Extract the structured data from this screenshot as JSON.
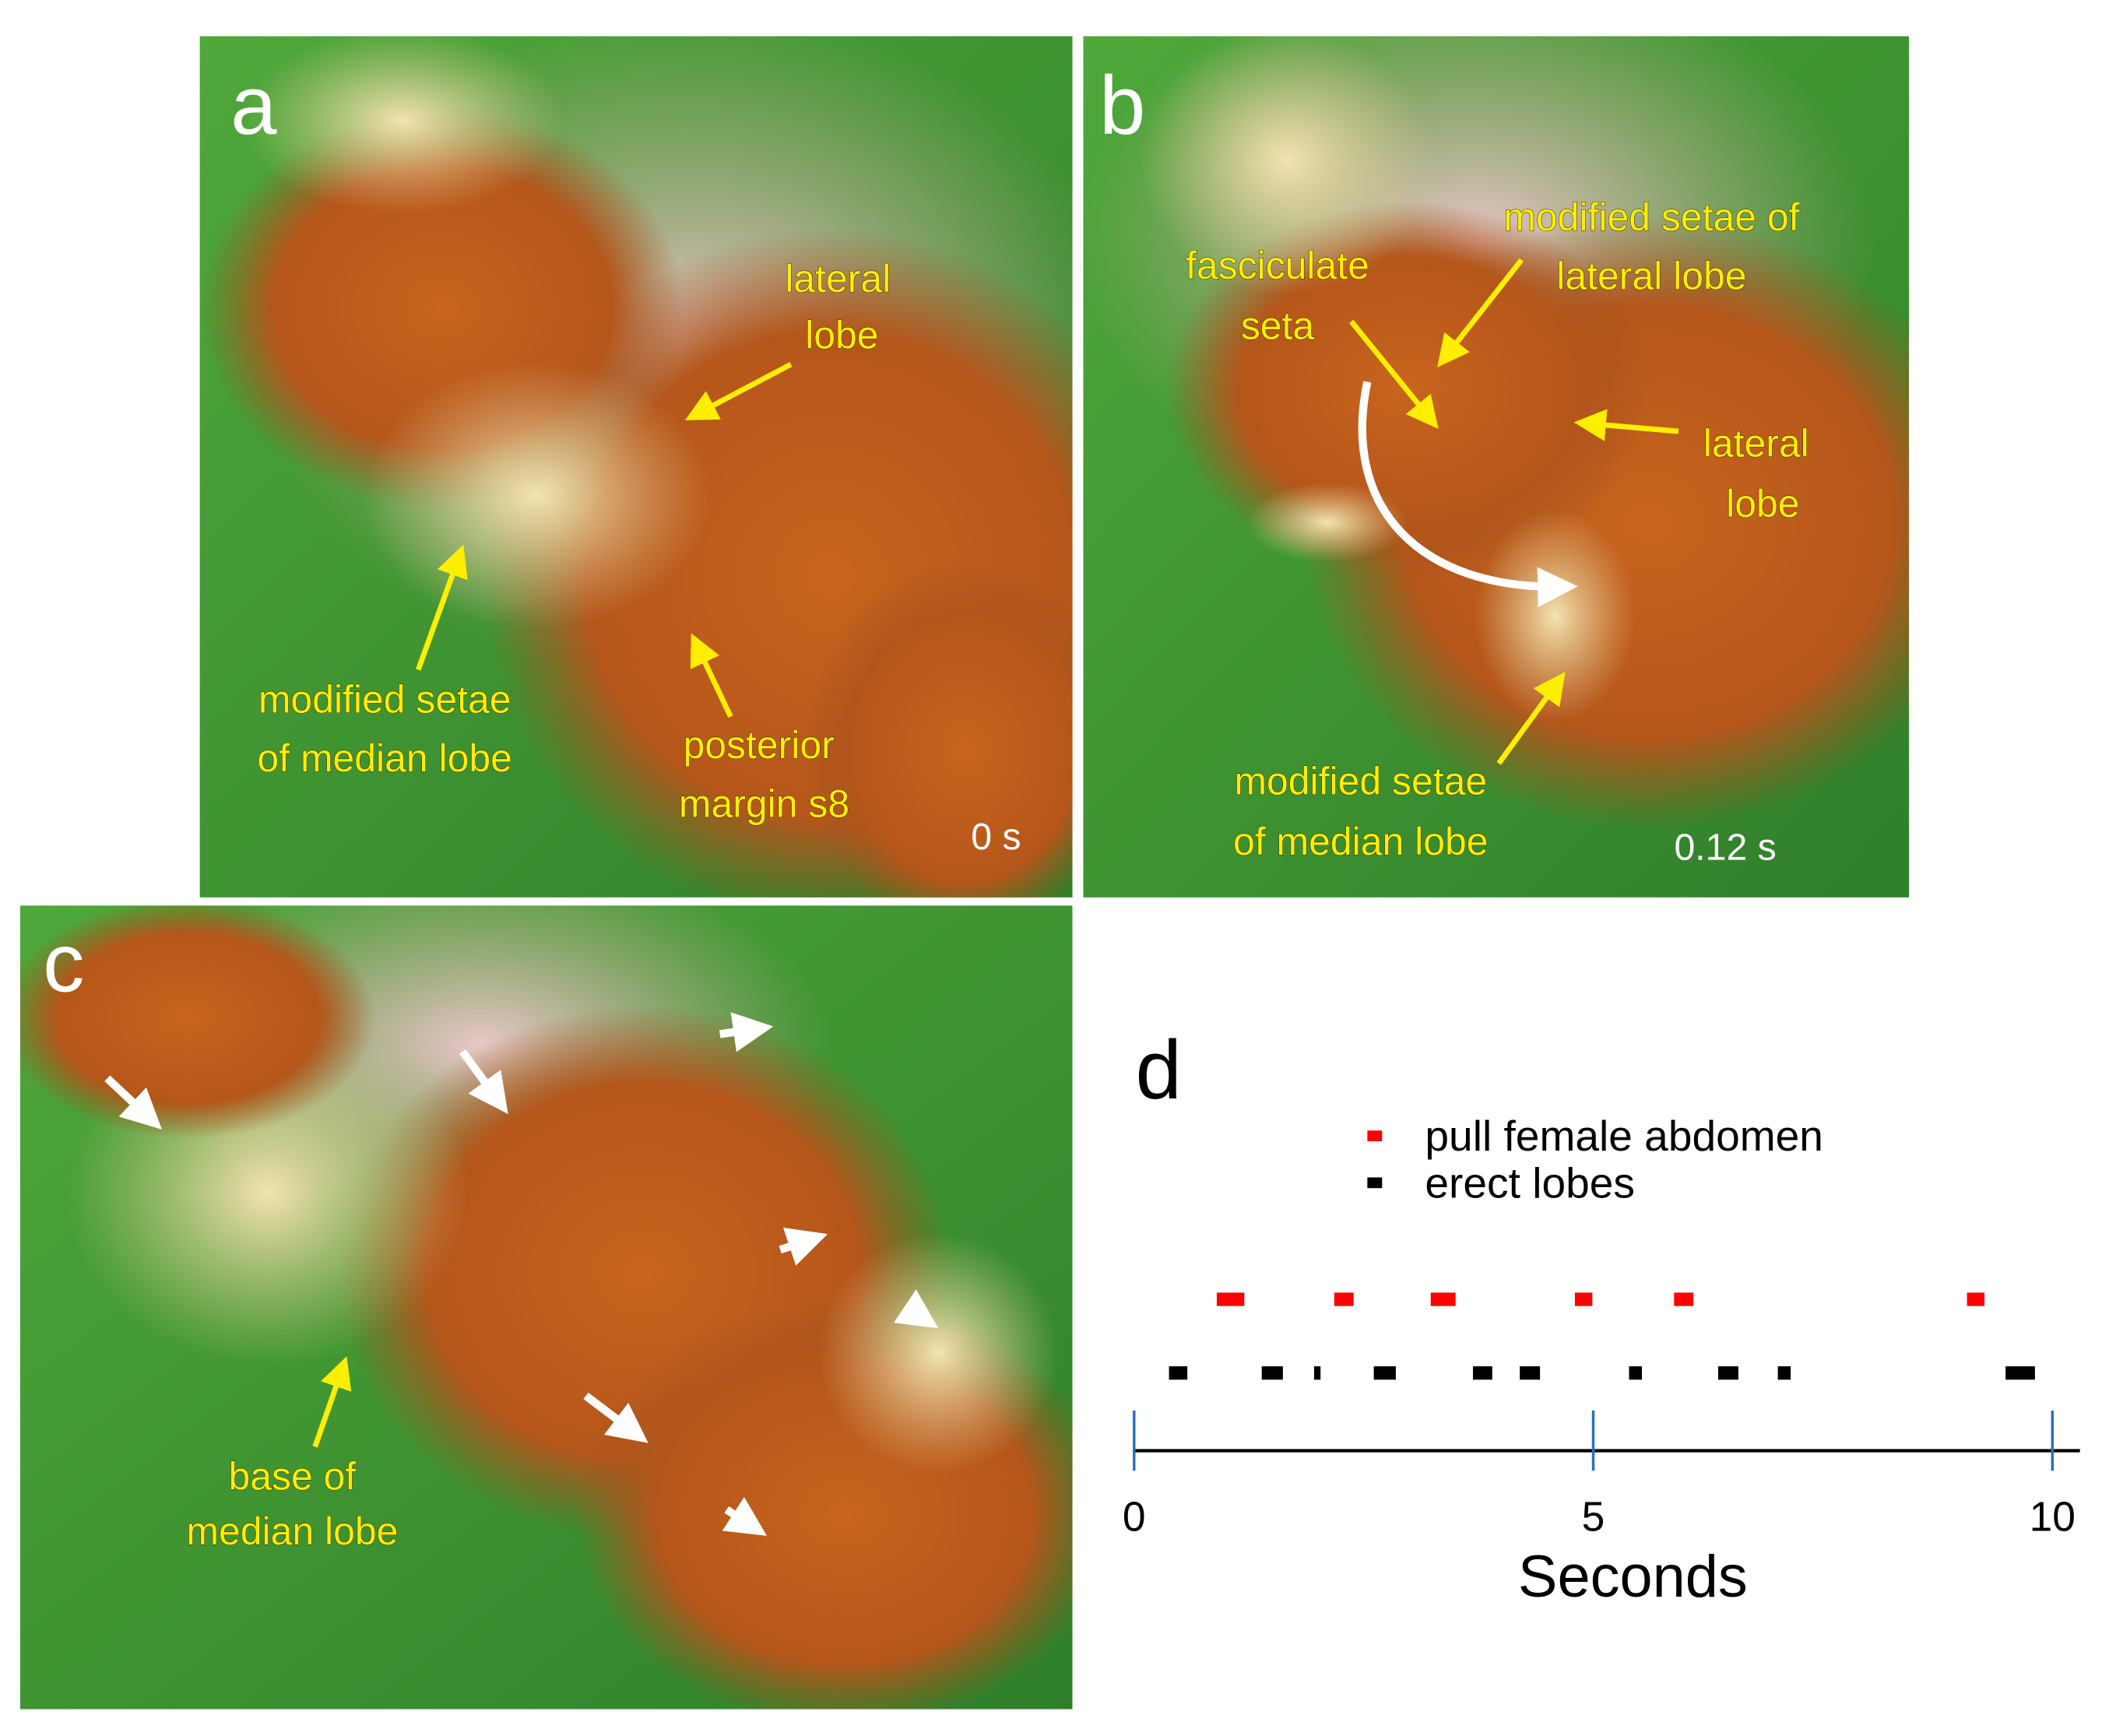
{
  "panels": [
    {
      "label": "a",
      "time": "0 s",
      "annotations": [
        [
          "lateral",
          "lobe"
        ],
        [
          "modified setae",
          "of median lobe"
        ],
        [
          "posterior",
          "margin s8"
        ]
      ]
    },
    {
      "label": "b",
      "time": "0.12 s",
      "annotations": [
        [
          "modified setae of",
          "lateral lobe"
        ],
        [
          "fasciculate",
          "seta"
        ],
        [
          "lateral",
          "lobe"
        ],
        [
          "modified setae",
          "of median lobe"
        ]
      ]
    },
    {
      "label": "c",
      "annotations": [
        [
          "base of",
          "median lobe"
        ]
      ]
    }
  ],
  "chart_data": {
    "type": "timeline",
    "label": "d",
    "x_label": "Seconds",
    "xlim": [
      0,
      10.3
    ],
    "xticks": [
      0,
      5,
      10
    ],
    "series": [
      {
        "name": "pull female abdomen",
        "color": "#ff0000",
        "starts": [
          0.9,
          2.18,
          3.23,
          4.8,
          5.88,
          9.07
        ],
        "ends": [
          1.2,
          2.39,
          3.5,
          4.99,
          6.09,
          9.26
        ]
      },
      {
        "name": "erect lobes",
        "color": "#000000",
        "starts": [
          0.38,
          1.39,
          1.96,
          2.61,
          3.69,
          4.2,
          5.39,
          6.36,
          7.01,
          9.49
        ],
        "ends": [
          0.58,
          1.62,
          2.03,
          2.85,
          3.9,
          4.42,
          5.53,
          6.58,
          7.15,
          9.81
        ]
      }
    ]
  }
}
